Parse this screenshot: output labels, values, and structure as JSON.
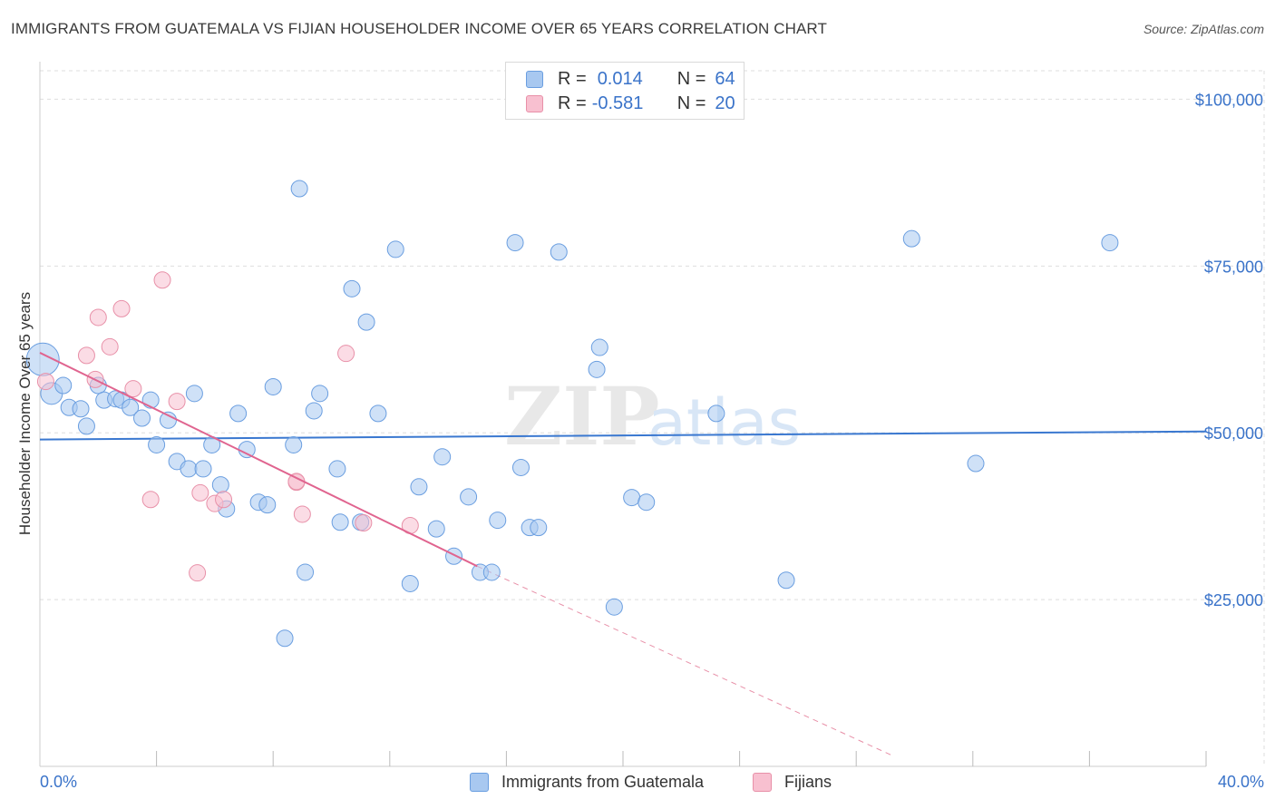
{
  "header": {
    "title": "IMMIGRANTS FROM GUATEMALA VS FIJIAN HOUSEHOLDER INCOME OVER 65 YEARS CORRELATION CHART",
    "source": "Source: ZipAtlas.com"
  },
  "watermark": {
    "zip": "ZIP",
    "atlas": "atlas"
  },
  "legend_top": [
    {
      "r_label": "R =",
      "r_value": "0.014",
      "n_label": "N =",
      "n_value": "64",
      "color": "#a8c8f0",
      "border": "#6a9ee0"
    },
    {
      "r_label": "R =",
      "r_value": "-0.581",
      "n_label": "N =",
      "n_value": "20",
      "color": "#f8c0d0",
      "border": "#e890a8"
    }
  ],
  "chart_data": {
    "type": "scatter",
    "title": "IMMIGRANTS FROM GUATEMALA VS FIJIAN HOUSEHOLDER INCOME OVER 65 YEARS CORRELATION CHART",
    "xlabel": "",
    "ylabel": "Householder Income Over 65 years",
    "xlim": [
      0,
      40
    ],
    "ylim": [
      0,
      104000
    ],
    "x_tick_labels": [
      "0.0%",
      "40.0%"
    ],
    "y_ticks": [
      25000,
      50000,
      75000,
      100000
    ],
    "y_tick_labels": [
      "$25,000",
      "$50,000",
      "$75,000",
      "$100,000"
    ],
    "grid": true,
    "legend": "bottom-center",
    "series": [
      {
        "name": "Immigrants from Guatemala",
        "color": "#a8c8f0",
        "stroke": "#6a9ee0",
        "trend": {
          "x": [
            0,
            40
          ],
          "y": [
            49000,
            50200
          ],
          "color": "#3a78d0"
        },
        "points": [
          [
            0.1,
            61000
          ],
          [
            0.4,
            55900
          ],
          [
            0.8,
            57100
          ],
          [
            1.0,
            53800
          ],
          [
            1.4,
            53600
          ],
          [
            1.6,
            51000
          ],
          [
            2.0,
            57100
          ],
          [
            2.2,
            54900
          ],
          [
            2.6,
            55100
          ],
          [
            2.8,
            54900
          ],
          [
            3.1,
            53800
          ],
          [
            3.5,
            52200
          ],
          [
            3.8,
            54900
          ],
          [
            4.0,
            48200
          ],
          [
            4.4,
            51900
          ],
          [
            4.7,
            45700
          ],
          [
            5.1,
            44600
          ],
          [
            5.3,
            55900
          ],
          [
            5.6,
            44600
          ],
          [
            5.9,
            48200
          ],
          [
            6.2,
            42200
          ],
          [
            6.4,
            38600
          ],
          [
            6.8,
            52900
          ],
          [
            7.1,
            47500
          ],
          [
            7.5,
            39600
          ],
          [
            7.8,
            39200
          ],
          [
            8.0,
            56900
          ],
          [
            8.4,
            19200
          ],
          [
            8.7,
            48200
          ],
          [
            8.9,
            86600
          ],
          [
            9.1,
            29100
          ],
          [
            9.4,
            53300
          ],
          [
            9.6,
            55900
          ],
          [
            10.2,
            44600
          ],
          [
            10.3,
            36600
          ],
          [
            10.7,
            71600
          ],
          [
            11.0,
            36600
          ],
          [
            11.2,
            66600
          ],
          [
            11.6,
            52900
          ],
          [
            12.2,
            77500
          ],
          [
            12.7,
            27400
          ],
          [
            13.0,
            41900
          ],
          [
            13.6,
            35600
          ],
          [
            13.8,
            46400
          ],
          [
            14.2,
            31500
          ],
          [
            14.7,
            40400
          ],
          [
            15.1,
            29100
          ],
          [
            15.5,
            29100
          ],
          [
            15.7,
            36900
          ],
          [
            16.3,
            78500
          ],
          [
            16.5,
            44800
          ],
          [
            16.8,
            35800
          ],
          [
            17.1,
            35800
          ],
          [
            17.8,
            77100
          ],
          [
            19.1,
            59500
          ],
          [
            19.2,
            62800
          ],
          [
            19.7,
            23900
          ],
          [
            20.3,
            40300
          ],
          [
            20.8,
            39600
          ],
          [
            23.2,
            52900
          ],
          [
            25.6,
            27900
          ],
          [
            29.9,
            79100
          ],
          [
            32.1,
            45400
          ],
          [
            36.7,
            78500
          ]
        ],
        "sizes": [
          18,
          12,
          9,
          9,
          9,
          9,
          9,
          9,
          9,
          9,
          9,
          9,
          9,
          9,
          9,
          9,
          9,
          9,
          9,
          9,
          9,
          9,
          9,
          9,
          9,
          9,
          9,
          9,
          9,
          9,
          9,
          9,
          9,
          9,
          9,
          9,
          9,
          9,
          9,
          9,
          9,
          9,
          9,
          9,
          9,
          9,
          9,
          9,
          9,
          9,
          9,
          9,
          9,
          9,
          9,
          9,
          9,
          9,
          9,
          9,
          9,
          9,
          9,
          9
        ]
      },
      {
        "name": "Fijians",
        "color": "#f8c0d0",
        "stroke": "#e890a8",
        "trend": {
          "x": [
            0,
            15
          ],
          "y": [
            62000,
            30000
          ],
          "dash_to": [
            29.3,
            1500
          ],
          "color": "#e0648f"
        },
        "points": [
          [
            0.2,
            57700
          ],
          [
            1.6,
            61600
          ],
          [
            1.9,
            58000
          ],
          [
            2.0,
            67300
          ],
          [
            2.4,
            62900
          ],
          [
            2.8,
            68600
          ],
          [
            3.2,
            56600
          ],
          [
            3.8,
            40000
          ],
          [
            4.2,
            72900
          ],
          [
            4.7,
            54700
          ],
          [
            5.4,
            29000
          ],
          [
            5.5,
            41000
          ],
          [
            6.0,
            39400
          ],
          [
            6.3,
            40000
          ],
          [
            8.8,
            42600
          ],
          [
            8.8,
            42700
          ],
          [
            9.0,
            37800
          ],
          [
            10.5,
            61900
          ],
          [
            11.1,
            36500
          ],
          [
            12.7,
            36100
          ]
        ],
        "sizes": [
          9,
          9,
          9,
          9,
          9,
          9,
          9,
          9,
          9,
          9,
          9,
          9,
          9,
          9,
          9,
          9,
          9,
          9,
          9,
          9
        ]
      }
    ]
  },
  "legend_bottom": [
    {
      "label": "Immigrants from Guatemala",
      "color": "#a8c8f0",
      "border": "#6a9ee0"
    },
    {
      "label": "Fijians",
      "color": "#f8c0d0",
      "border": "#e890a8"
    }
  ]
}
